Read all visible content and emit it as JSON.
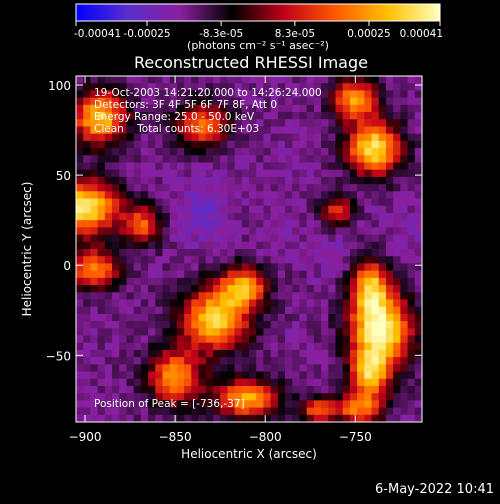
{
  "chart_data": {
    "type": "heatmap",
    "title": "Reconstructed RHESSI Image",
    "xlabel": "Heliocentric X (arcsec)",
    "ylabel": "Heliocentric Y (arcsec)",
    "xlim": [
      -905,
      -713
    ],
    "ylim": [
      -87,
      105
    ],
    "x_ticks": [
      -900,
      -850,
      -800,
      -750
    ],
    "y_ticks": [
      -50,
      0,
      50,
      100
    ],
    "colorbar": {
      "ticks": [
        "-0.00041",
        "-0.00025",
        "-8.3e-05",
        "8.3e-05",
        "0.00025",
        "0.00041"
      ],
      "tick_values": [
        -0.00041,
        -0.00025,
        -8.3e-05,
        8.3e-05,
        0.00025,
        0.00041
      ],
      "range": [
        -0.00041,
        0.00041
      ],
      "unit_label": "(photons cm⁻² s⁻¹ asec⁻²)",
      "colors": [
        "#0000ff",
        "#5a2ecc",
        "#8a1f9e",
        "#000000",
        "#c0001a",
        "#ff5a00",
        "#ffc000",
        "#ffffc0"
      ]
    },
    "annotations": [
      "19-Oct-2003 14:21:20.000 to 14:26:24.000",
      "Detectors: 3F 4F 5F 6F 7F 8F, Att 0",
      "Energy Range: 25.0 - 50.0 keV",
      "Clean    Total counts: 6.30E+03"
    ],
    "peak_label": "Position of Peak = [-736,-37]",
    "peak_position": [
      -736,
      -37
    ],
    "blobs": [
      {
        "x": -736,
        "y": -37,
        "rx": 16,
        "ry": 20,
        "value": 0.00041
      },
      {
        "x": -742,
        "y": -12,
        "rx": 10,
        "ry": 14,
        "value": 0.00024
      },
      {
        "x": -742,
        "y": -62,
        "rx": 10,
        "ry": 12,
        "value": 0.00022
      },
      {
        "x": -748,
        "y": -80,
        "rx": 12,
        "ry": 8,
        "value": 0.00018
      },
      {
        "x": -740,
        "y": 65,
        "rx": 14,
        "ry": 14,
        "value": 0.00036
      },
      {
        "x": -750,
        "y": 92,
        "rx": 12,
        "ry": 10,
        "value": 0.00026
      },
      {
        "x": -900,
        "y": 32,
        "rx": 18,
        "ry": 14,
        "value": 0.00037
      },
      {
        "x": -892,
        "y": 82,
        "rx": 14,
        "ry": 14,
        "value": 0.00032
      },
      {
        "x": -895,
        "y": -2,
        "rx": 14,
        "ry": 10,
        "value": 0.00022
      },
      {
        "x": -828,
        "y": -30,
        "rx": 18,
        "ry": 16,
        "value": 0.00033
      },
      {
        "x": -812,
        "y": -12,
        "rx": 12,
        "ry": 10,
        "value": 0.00026
      },
      {
        "x": -850,
        "y": -62,
        "rx": 14,
        "ry": 14,
        "value": 0.00024
      },
      {
        "x": -810,
        "y": -74,
        "rx": 16,
        "ry": 10,
        "value": 0.00028
      },
      {
        "x": -770,
        "y": -80,
        "rx": 10,
        "ry": 6,
        "value": 0.00018
      },
      {
        "x": -868,
        "y": 22,
        "rx": 10,
        "ry": 10,
        "value": 0.00016
      },
      {
        "x": -835,
        "y": 78,
        "rx": 14,
        "ry": 12,
        "value": 0.00018
      },
      {
        "x": -760,
        "y": 30,
        "rx": 8,
        "ry": 8,
        "value": 0.00014
      },
      {
        "x": -790,
        "y": 20,
        "rx": 10,
        "ry": 10,
        "value": -0.0002
      },
      {
        "x": -835,
        "y": 30,
        "rx": 14,
        "ry": 16,
        "value": -0.00025
      },
      {
        "x": -760,
        "y": 5,
        "rx": 10,
        "ry": 10,
        "value": -0.00022
      },
      {
        "x": -780,
        "y": 60,
        "rx": 14,
        "ry": 10,
        "value": -0.00018
      },
      {
        "x": -880,
        "y": -40,
        "rx": 12,
        "ry": 10,
        "value": -0.00016
      },
      {
        "x": -720,
        "y": 20,
        "rx": 10,
        "ry": 12,
        "value": -0.0002
      },
      {
        "x": -860,
        "y": -85,
        "rx": 10,
        "ry": 6,
        "value": -0.00015
      }
    ]
  },
  "footer": {
    "timestamp": "6-May-2022 10:41"
  }
}
